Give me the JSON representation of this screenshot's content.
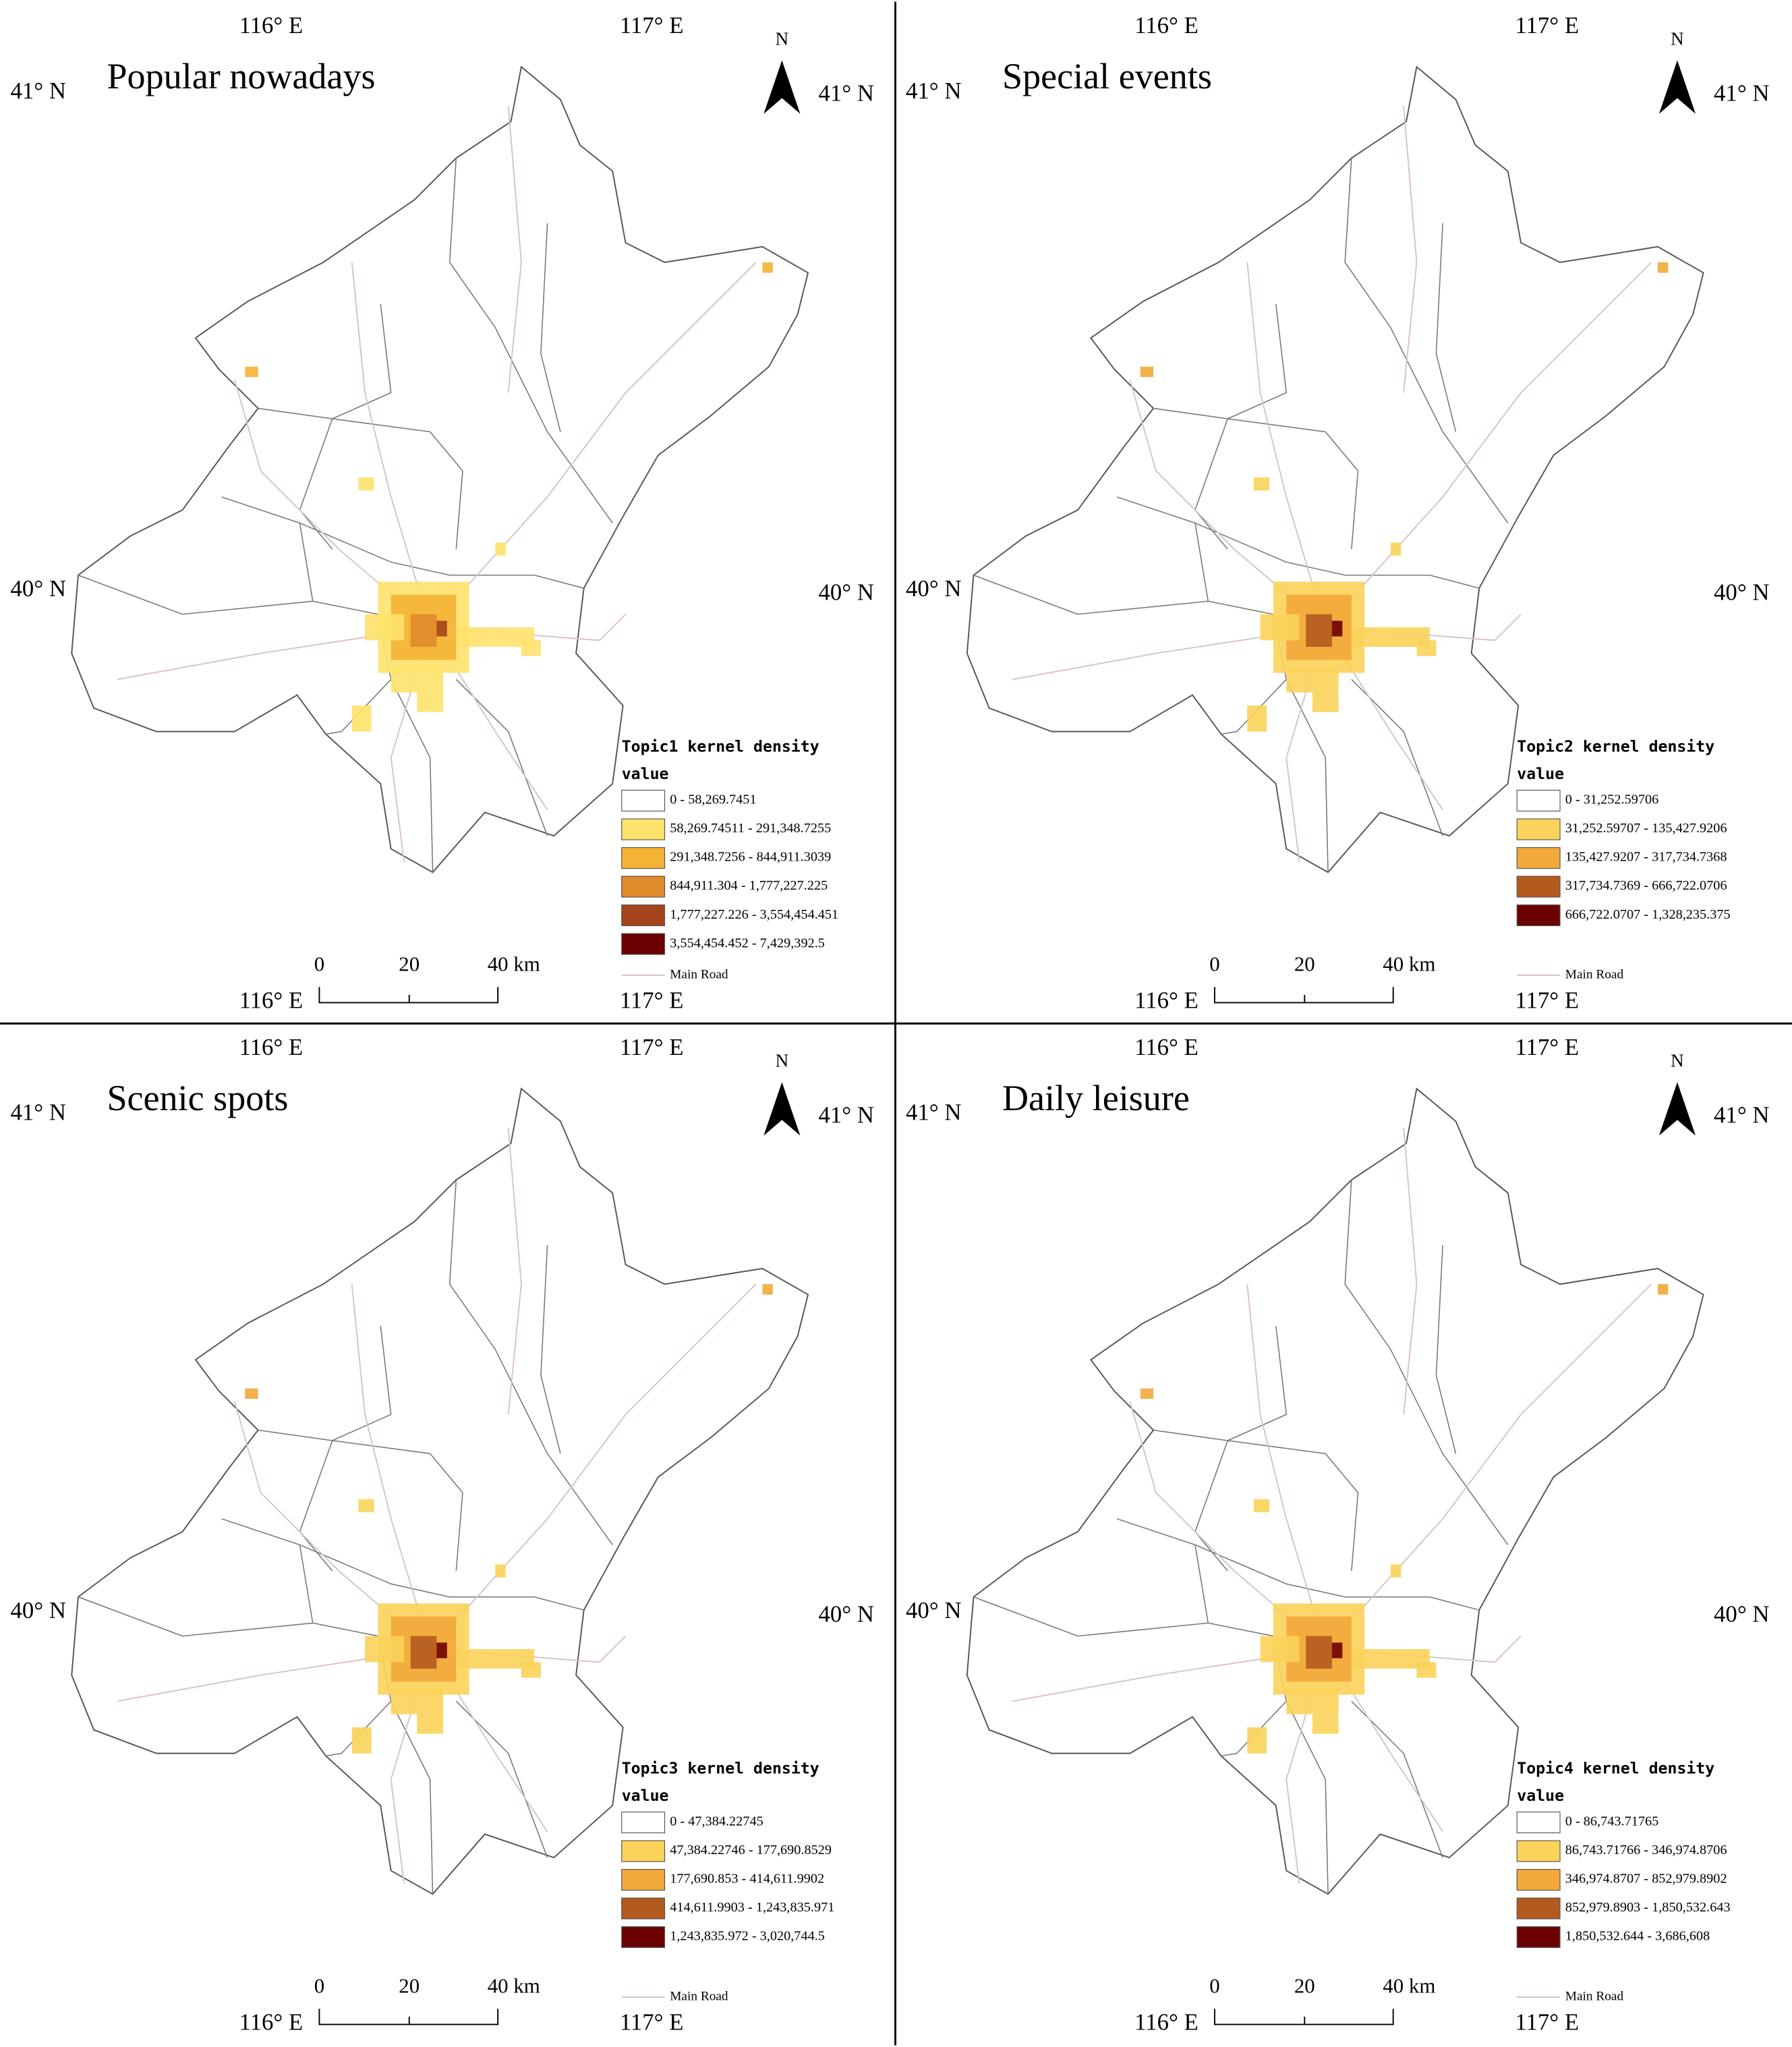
{
  "panels": [
    {
      "title": "Popular nowadays",
      "legend": {
        "title": "Topic1 kernel density",
        "subtitle": "value",
        "road": "Main Road",
        "classes": [
          {
            "label": "0 - 58,269.7451",
            "color": "#ffffff"
          },
          {
            "label": "58,269.74511 - 291,348.7255",
            "color": "#fde26c"
          },
          {
            "label": "291,348.7256 - 844,911.3039",
            "color": "#f5b335"
          },
          {
            "label": "844,911.304 - 1,777,227.225",
            "color": "#e08a2a"
          },
          {
            "label": "1,777,227.226 - 3,554,454.451",
            "color": "#a4441a"
          },
          {
            "label": "3,554,454.452 - 7,429,392.5",
            "color": "#6b0000"
          }
        ]
      }
    },
    {
      "title": "Special events",
      "legend": {
        "title": "Topic2 kernel density",
        "subtitle": "value",
        "road": "Main Road",
        "classes": [
          {
            "label": "0 - 31,252.59706",
            "color": "#ffffff"
          },
          {
            "label": "31,252.59707 - 135,427.9206",
            "color": "#fbd35a"
          },
          {
            "label": "135,427.9207 - 317,734.7368",
            "color": "#f2a93a"
          },
          {
            "label": "317,734.7369 - 666,722.0706",
            "color": "#b35a1e"
          },
          {
            "label": "666,722.0707 - 1,328,235.375",
            "color": "#6b0000"
          }
        ]
      }
    },
    {
      "title": "Scenic spots",
      "legend": {
        "title": "Topic3 kernel density",
        "subtitle": "value",
        "road": "Main Road",
        "classes": [
          {
            "label": "0 - 47,384.22745",
            "color": "#ffffff"
          },
          {
            "label": "47,384.22746 - 177,690.8529",
            "color": "#fbd35a"
          },
          {
            "label": "177,690.853 - 414,611.9902",
            "color": "#f2a93a"
          },
          {
            "label": "414,611.9903 - 1,243,835.971",
            "color": "#b35a1e"
          },
          {
            "label": "1,243,835.972 - 3,020,744.5",
            "color": "#6b0000"
          }
        ]
      }
    },
    {
      "title": "Daily leisure",
      "legend": {
        "title": "Topic4 kernel density",
        "subtitle": "value",
        "road": "Main Road",
        "classes": [
          {
            "label": "0 - 86,743.71765",
            "color": "#ffffff"
          },
          {
            "label": "86,743.71766 - 346,974.8706",
            "color": "#fbd35a"
          },
          {
            "label": "346,974.8707 - 852,979.8902",
            "color": "#f2a93a"
          },
          {
            "label": "852,979.8903 - 1,850,532.643",
            "color": "#b35a1e"
          },
          {
            "label": "1,850,532.644 - 3,686,608",
            "color": "#6b0000"
          }
        ]
      }
    }
  ],
  "coordinates": {
    "lon": [
      "116° E",
      "117° E"
    ],
    "lat": [
      "41° N",
      "40° N"
    ]
  },
  "north": "N",
  "scale": [
    "0",
    "20",
    "40 km"
  ]
}
